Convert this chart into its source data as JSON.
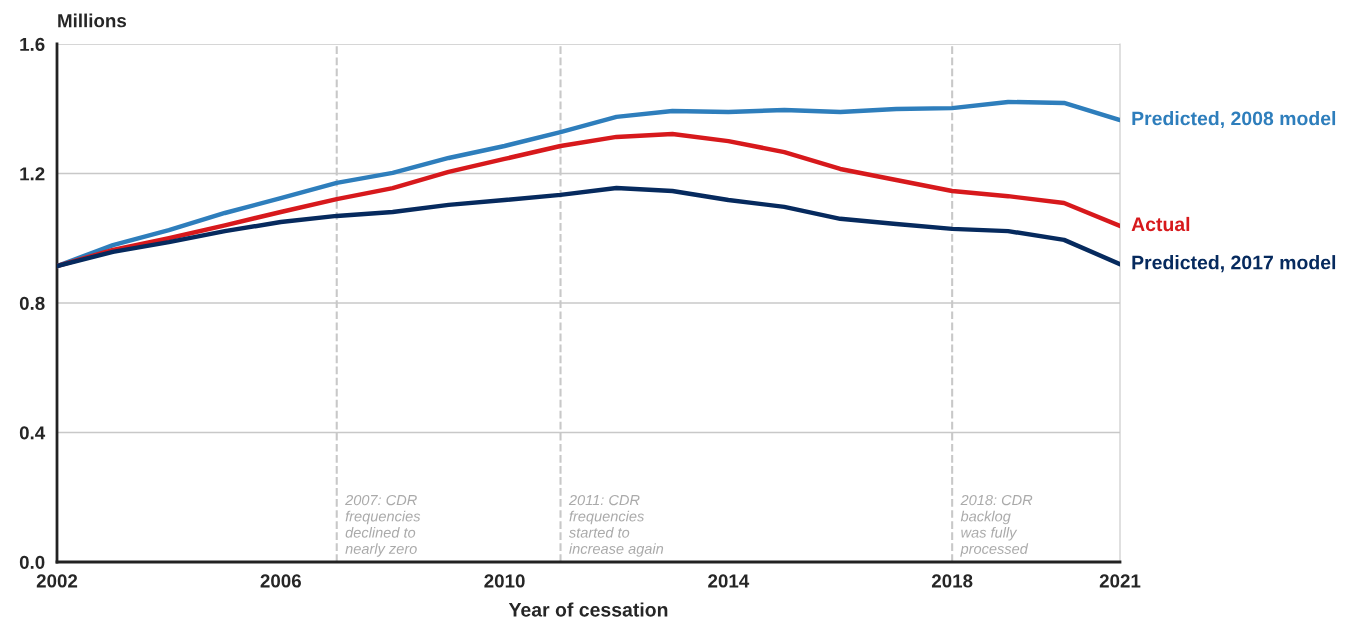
{
  "chart_data": {
    "type": "line",
    "ylabel": "Millions",
    "xlabel": "Year of cessation",
    "x": [
      2002,
      2003,
      2004,
      2005,
      2006,
      2007,
      2008,
      2009,
      2010,
      2011,
      2012,
      2013,
      2014,
      2015,
      2016,
      2017,
      2018,
      2019,
      2020,
      2021
    ],
    "series": [
      {
        "name": "Predicted, 2008 model",
        "color": "#2e7ebc",
        "values": [
          0.914,
          0.979,
          1.025,
          1.078,
          1.124,
          1.171,
          1.202,
          1.248,
          1.285,
          1.328,
          1.375,
          1.393,
          1.39,
          1.396,
          1.39,
          1.399,
          1.402,
          1.421,
          1.418,
          1.365
        ]
      },
      {
        "name": "Actual",
        "color": "#d7191c",
        "values": [
          0.914,
          0.964,
          1.0,
          1.04,
          1.081,
          1.121,
          1.155,
          1.205,
          1.245,
          1.285,
          1.313,
          1.322,
          1.3,
          1.266,
          1.214,
          1.18,
          1.146,
          1.13,
          1.109,
          1.038
        ]
      },
      {
        "name": "Predicted, 2017 model",
        "color": "#062a5e",
        "values": [
          0.914,
          0.958,
          0.988,
          1.022,
          1.05,
          1.069,
          1.081,
          1.103,
          1.118,
          1.134,
          1.155,
          1.146,
          1.118,
          1.097,
          1.06,
          1.044,
          1.029,
          1.022,
          0.995,
          0.92
        ]
      }
    ],
    "xlim": [
      2002,
      2021
    ],
    "xticks": [
      2002,
      2006,
      2010,
      2014,
      2018,
      2021
    ],
    "ylim": [
      0,
      1.6
    ],
    "yticks": [
      {
        "value": 0,
        "label": "0.0"
      },
      {
        "value": 0.4,
        "label": "0.4"
      },
      {
        "value": 0.8,
        "label": "0.8"
      },
      {
        "value": 1.2,
        "label": "1.2"
      },
      {
        "value": 1.6,
        "label": "1.6"
      }
    ],
    "grid": "y",
    "legend": false,
    "line_style": "solid",
    "marker": "none",
    "ref_lines": [
      {
        "axis": "x",
        "value": 2007,
        "label": "2007: CDR\nfrequencies\ndeclined to\nnearly zero",
        "color": "#c8c8c8",
        "line_style": "dashed"
      },
      {
        "axis": "x",
        "value": 2011,
        "label": "2011: CDR\nfrequencies\nstarted to\nincrease again",
        "color": "#c8c8c8",
        "line_style": "dashed"
      },
      {
        "axis": "x",
        "value": 2018,
        "label": "2018: CDR\nbacklog\nwas fully\nprocessed",
        "color": "#c8c8c8",
        "line_style": "dashed"
      }
    ]
  }
}
